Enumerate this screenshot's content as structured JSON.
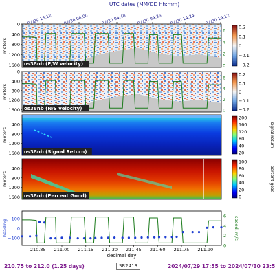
{
  "header": {
    "title": "UTC dates (MM/DD hh:mm)"
  },
  "top_ticks": [
    "07/29 18:12",
    "07/30 00:00",
    "07/30 04:48",
    "07/30 09:36",
    "07/30 14:24",
    "07/30 19:12"
  ],
  "footer": {
    "range": "210.75 to 212.0 (1.25 days)",
    "cruise": "SR2413",
    "dates": "2024/07/29 17:55 to 2024/07/30 23:55"
  },
  "colors": {
    "title": "#1a1a8a",
    "footer": "#7f1f8f",
    "green_line": "#1a7a1a",
    "heading_dots": "#1f3fd1",
    "bottom_gray": "#c8c8c8"
  },
  "chart_data": [
    {
      "type": "heatmap",
      "label": "os38nb (E/W velocity)",
      "ylabel": "meters",
      "ylim": [
        1700,
        0
      ],
      "yticks": [
        0,
        400,
        800,
        1200,
        1600
      ],
      "colorbar": {
        "ticks": [
          "0.2",
          "0.1",
          "0",
          "−0.1",
          "−0.2"
        ],
        "range": [
          -0.2,
          0.2
        ],
        "cmap": "RdBu_r"
      },
      "right_axis": {
        "ticks": [
          "6",
          "4",
          "2",
          "0"
        ]
      }
    },
    {
      "type": "heatmap",
      "label": "os38nb (N/S velocity)",
      "ylabel": "meters",
      "ylim": [
        1700,
        0
      ],
      "yticks": [
        0,
        400,
        800,
        1200,
        1600
      ],
      "colorbar": {
        "ticks": [
          "0.2",
          "0.1",
          "0",
          "−0.1",
          "−0.2"
        ],
        "range": [
          -0.2,
          0.2
        ],
        "cmap": "RdBu_r"
      },
      "right_axis": {
        "ticks": [
          "6",
          "4",
          "2",
          "0"
        ]
      }
    },
    {
      "type": "heatmap",
      "label": "os38nb (Signal Return)",
      "ylabel": "meters",
      "ylim": [
        1700,
        0
      ],
      "yticks": [
        400,
        800,
        1200,
        1600
      ],
      "colorbar": {
        "label": "signal return",
        "ticks": [
          "200",
          "160",
          "120",
          "80",
          "40",
          "20"
        ],
        "range": [
          20,
          200
        ],
        "cmap": "jet"
      }
    },
    {
      "type": "heatmap",
      "label": "os38nb (Percent Good)",
      "ylabel": "meters",
      "ylim": [
        1700,
        0
      ],
      "yticks": [
        400,
        800,
        1200,
        1600
      ],
      "colorbar": {
        "label": "percent good",
        "ticks": [
          "100",
          "80",
          "60",
          "40",
          "20",
          "0"
        ],
        "range": [
          0,
          100
        ],
        "cmap": "jet"
      }
    },
    {
      "type": "scatter",
      "xlabel": "decimal day",
      "ylabel": "heading",
      "y2label": "speed, m/s",
      "x_ticks": [
        "210.85",
        "211.00",
        "211.15",
        "211.30",
        "211.45",
        "211.60",
        "211.75",
        "211.90"
      ],
      "x_tick_values": [
        210.85,
        211.0,
        211.15,
        211.3,
        211.45,
        211.6,
        211.75,
        211.9
      ],
      "xlim": [
        210.75,
        212.0
      ],
      "yticks": [
        "100",
        "0",
        "−100"
      ],
      "ylim": [
        -180,
        180
      ],
      "y2ticks": [
        "6",
        "4",
        "2",
        "0"
      ],
      "y2lim": [
        0,
        7
      ],
      "series": [
        {
          "type": "line",
          "x": [
            210.75,
            210.8,
            210.84,
            210.845,
            210.89,
            210.9,
            210.96,
            210.965,
            211.05,
            211.06,
            211.14,
            211.15,
            211.2,
            211.21,
            211.29,
            211.3,
            211.38,
            211.39,
            211.45,
            211.46,
            211.54,
            211.55,
            211.6,
            211.61,
            211.69,
            211.7,
            211.75,
            211.76,
            211.91,
            211.92,
            212.0
          ],
          "values": [
            5.2,
            5.2,
            5.1,
            0.5,
            0.5,
            5.8,
            5.8,
            0.5,
            0.5,
            5.8,
            5.8,
            0.5,
            0.5,
            5.8,
            5.8,
            0.5,
            0.5,
            5.8,
            5.8,
            0.5,
            0.5,
            5.6,
            5.6,
            0.5,
            0.5,
            5.6,
            5.6,
            0.5,
            0.5,
            5.0,
            5.0
          ]
        },
        {
          "type": "scatter",
          "x": [
            210.75,
            210.8,
            210.84,
            210.86,
            210.89,
            210.93,
            210.96,
            211.0,
            211.05,
            211.1,
            211.14,
            211.18,
            211.21,
            211.25,
            211.29,
            211.33,
            211.38,
            211.42,
            211.46,
            211.5,
            211.54,
            211.58,
            211.61,
            211.65,
            211.69,
            211.72,
            211.76,
            211.82,
            211.86,
            211.91,
            211.95,
            212.0
          ],
          "values": [
            -85,
            -85,
            -80,
            65,
            60,
            -105,
            -105,
            -100,
            -100,
            -105,
            -105,
            -105,
            -102,
            -100,
            -100,
            -98,
            -100,
            -100,
            -100,
            -97,
            -96,
            -95,
            -93,
            -93,
            -92,
            -90,
            -40,
            -40,
            -40,
            5,
            10,
            10
          ]
        }
      ]
    }
  ]
}
